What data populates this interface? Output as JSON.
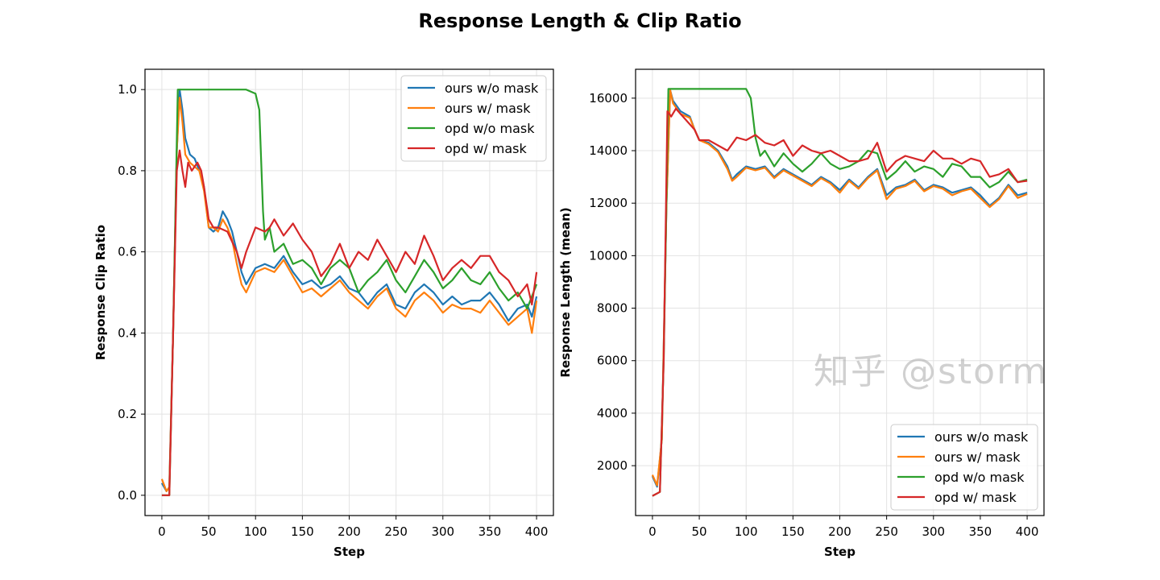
{
  "title": "Response Length & Clip Ratio",
  "watermark": "知乎 @storm",
  "colors": {
    "ours w/o mask": "#1f77b4",
    "ours w/ mask": "#ff7f0e",
    "opd w/o mask": "#2ca02c",
    "opd w/ mask": "#d62728"
  },
  "chart_data": [
    {
      "type": "line",
      "xlabel": "Step",
      "ylabel": "Response Clip Ratio",
      "xlim": [
        -18,
        418
      ],
      "ylim": [
        -0.05,
        1.05
      ],
      "xticks": [
        0,
        50,
        100,
        150,
        200,
        250,
        300,
        350,
        400
      ],
      "yticks": [
        0.0,
        0.2,
        0.4,
        0.6,
        0.8,
        1.0
      ],
      "ytick_labels": [
        "0.0",
        "0.2",
        "0.4",
        "0.6",
        "0.8",
        "1.0"
      ],
      "grid": true,
      "legend": "top-right",
      "series": [
        {
          "name": "ours w/o mask",
          "x": [
            0,
            5,
            8,
            12,
            16,
            19,
            22,
            25,
            30,
            35,
            40,
            45,
            50,
            55,
            60,
            65,
            70,
            75,
            80,
            85,
            90,
            100,
            110,
            120,
            130,
            140,
            150,
            160,
            170,
            180,
            190,
            200,
            210,
            220,
            230,
            240,
            250,
            260,
            270,
            280,
            290,
            300,
            310,
            320,
            330,
            340,
            350,
            360,
            370,
            380,
            390,
            395,
            400
          ],
          "y": [
            0.03,
            0.01,
            0.02,
            0.4,
            0.85,
            1.0,
            0.95,
            0.88,
            0.84,
            0.83,
            0.8,
            0.76,
            0.66,
            0.65,
            0.66,
            0.7,
            0.68,
            0.65,
            0.6,
            0.55,
            0.52,
            0.56,
            0.57,
            0.56,
            0.59,
            0.55,
            0.52,
            0.53,
            0.51,
            0.52,
            0.54,
            0.51,
            0.5,
            0.47,
            0.5,
            0.52,
            0.47,
            0.46,
            0.5,
            0.52,
            0.5,
            0.47,
            0.49,
            0.47,
            0.48,
            0.48,
            0.5,
            0.47,
            0.43,
            0.46,
            0.47,
            0.44,
            0.49
          ]
        },
        {
          "name": "ours w/ mask",
          "x": [
            0,
            5,
            8,
            12,
            16,
            19,
            22,
            25,
            30,
            35,
            40,
            45,
            50,
            55,
            60,
            65,
            70,
            75,
            80,
            85,
            90,
            100,
            110,
            120,
            130,
            140,
            150,
            160,
            170,
            180,
            190,
            200,
            210,
            220,
            230,
            240,
            250,
            260,
            270,
            280,
            290,
            300,
            310,
            320,
            330,
            340,
            350,
            360,
            370,
            380,
            390,
            395,
            400
          ],
          "y": [
            0.04,
            0.01,
            0.02,
            0.4,
            0.85,
            0.98,
            0.92,
            0.84,
            0.82,
            0.81,
            0.8,
            0.75,
            0.66,
            0.66,
            0.65,
            0.68,
            0.66,
            0.63,
            0.57,
            0.52,
            0.5,
            0.55,
            0.56,
            0.55,
            0.58,
            0.54,
            0.5,
            0.51,
            0.49,
            0.51,
            0.53,
            0.5,
            0.48,
            0.46,
            0.49,
            0.51,
            0.46,
            0.44,
            0.48,
            0.5,
            0.48,
            0.45,
            0.47,
            0.46,
            0.46,
            0.45,
            0.48,
            0.45,
            0.42,
            0.44,
            0.46,
            0.4,
            0.48
          ]
        },
        {
          "name": "opd w/o mask",
          "x": [
            0,
            8,
            12,
            17,
            30,
            50,
            70,
            90,
            100,
            104,
            108,
            110,
            115,
            120,
            130,
            140,
            150,
            160,
            170,
            180,
            190,
            200,
            210,
            220,
            230,
            240,
            250,
            260,
            270,
            280,
            290,
            300,
            310,
            320,
            330,
            340,
            350,
            360,
            370,
            380,
            390,
            400
          ],
          "y": [
            0,
            0,
            0.4,
            1.0,
            1.0,
            1.0,
            1.0,
            1.0,
            0.99,
            0.95,
            0.7,
            0.63,
            0.66,
            0.6,
            0.62,
            0.57,
            0.58,
            0.56,
            0.52,
            0.56,
            0.58,
            0.56,
            0.5,
            0.53,
            0.55,
            0.58,
            0.53,
            0.5,
            0.54,
            0.58,
            0.55,
            0.51,
            0.53,
            0.56,
            0.53,
            0.52,
            0.55,
            0.51,
            0.48,
            0.5,
            0.46,
            0.52
          ]
        },
        {
          "name": "opd w/ mask",
          "x": [
            0,
            8,
            12,
            16,
            19,
            22,
            25,
            28,
            32,
            38,
            42,
            45,
            50,
            55,
            60,
            70,
            80,
            85,
            90,
            100,
            110,
            115,
            120,
            130,
            140,
            150,
            160,
            170,
            180,
            190,
            200,
            210,
            220,
            230,
            240,
            250,
            260,
            270,
            280,
            290,
            300,
            310,
            320,
            330,
            340,
            350,
            360,
            370,
            380,
            390,
            395,
            400
          ],
          "y": [
            0,
            0,
            0.4,
            0.8,
            0.85,
            0.8,
            0.76,
            0.82,
            0.8,
            0.82,
            0.8,
            0.76,
            0.68,
            0.66,
            0.66,
            0.65,
            0.6,
            0.56,
            0.6,
            0.66,
            0.65,
            0.66,
            0.68,
            0.64,
            0.67,
            0.63,
            0.6,
            0.54,
            0.57,
            0.62,
            0.56,
            0.6,
            0.58,
            0.63,
            0.59,
            0.55,
            0.6,
            0.57,
            0.64,
            0.59,
            0.53,
            0.56,
            0.58,
            0.56,
            0.59,
            0.59,
            0.55,
            0.53,
            0.49,
            0.52,
            0.47,
            0.55
          ]
        }
      ]
    },
    {
      "type": "line",
      "xlabel": "Step",
      "ylabel": "Response Length (mean)",
      "xlim": [
        -18,
        418
      ],
      "ylim": [
        100,
        17100
      ],
      "xticks": [
        0,
        50,
        100,
        150,
        200,
        250,
        300,
        350,
        400
      ],
      "yticks": [
        2000,
        4000,
        6000,
        8000,
        10000,
        12000,
        14000,
        16000
      ],
      "ytick_labels": [
        "2000",
        "4000",
        "6000",
        "8000",
        "10000",
        "12000",
        "14000",
        "16000"
      ],
      "grid": true,
      "legend": "bottom-right",
      "series": [
        {
          "name": "ours w/o mask",
          "x": [
            0,
            5,
            10,
            15,
            19,
            22,
            30,
            40,
            45,
            50,
            60,
            70,
            80,
            85,
            90,
            100,
            110,
            120,
            130,
            140,
            150,
            160,
            170,
            180,
            190,
            200,
            210,
            220,
            230,
            240,
            250,
            260,
            270,
            280,
            290,
            300,
            310,
            320,
            330,
            340,
            350,
            360,
            370,
            380,
            390,
            400
          ],
          "y": [
            1600,
            1200,
            3000,
            12000,
            16300,
            15900,
            15500,
            15300,
            14800,
            14400,
            14300,
            14000,
            13400,
            12900,
            13100,
            13400,
            13300,
            13400,
            13000,
            13300,
            13100,
            12900,
            12700,
            13000,
            12800,
            12500,
            12900,
            12600,
            13000,
            13300,
            12300,
            12600,
            12700,
            12900,
            12500,
            12700,
            12600,
            12400,
            12500,
            12600,
            12300,
            11900,
            12200,
            12700,
            12300,
            12400
          ]
        },
        {
          "name": "ours w/ mask",
          "x": [
            0,
            5,
            10,
            15,
            19,
            22,
            30,
            40,
            45,
            50,
            60,
            70,
            80,
            85,
            90,
            100,
            110,
            120,
            130,
            140,
            150,
            160,
            170,
            180,
            190,
            200,
            210,
            220,
            230,
            240,
            250,
            260,
            270,
            280,
            290,
            300,
            310,
            320,
            330,
            340,
            350,
            360,
            370,
            380,
            390,
            400
          ],
          "y": [
            1650,
            1250,
            3000,
            12000,
            16300,
            15800,
            15400,
            15250,
            14800,
            14400,
            14250,
            13950,
            13300,
            12850,
            13000,
            13350,
            13250,
            13350,
            12950,
            13250,
            13050,
            12850,
            12650,
            12950,
            12750,
            12400,
            12850,
            12550,
            12950,
            13250,
            12150,
            12550,
            12650,
            12850,
            12450,
            12650,
            12550,
            12300,
            12450,
            12550,
            12200,
            11850,
            12150,
            12650,
            12200,
            12350
          ]
        },
        {
          "name": "opd w/o mask",
          "x": [
            0,
            8,
            12,
            17,
            40,
            70,
            100,
            105,
            110,
            115,
            120,
            130,
            140,
            150,
            160,
            170,
            180,
            190,
            200,
            210,
            220,
            230,
            240,
            250,
            260,
            270,
            280,
            290,
            300,
            310,
            320,
            330,
            340,
            350,
            360,
            370,
            380,
            390,
            400
          ],
          "y": [
            850,
            1000,
            6000,
            16350,
            16350,
            16350,
            16350,
            16000,
            14500,
            13800,
            14000,
            13400,
            13900,
            13500,
            13200,
            13500,
            13900,
            13500,
            13300,
            13400,
            13600,
            14000,
            13900,
            12900,
            13200,
            13600,
            13200,
            13400,
            13300,
            13000,
            13500,
            13400,
            13000,
            13000,
            12600,
            12800,
            13200,
            12800,
            12900
          ]
        },
        {
          "name": "opd w/ mask",
          "x": [
            0,
            8,
            12,
            16,
            20,
            25,
            30,
            40,
            45,
            50,
            60,
            70,
            80,
            90,
            100,
            110,
            120,
            130,
            140,
            150,
            160,
            170,
            180,
            190,
            200,
            210,
            220,
            230,
            240,
            250,
            260,
            270,
            280,
            290,
            300,
            310,
            320,
            330,
            340,
            350,
            360,
            370,
            380,
            390,
            400
          ],
          "y": [
            850,
            1000,
            6000,
            15500,
            15300,
            15600,
            15400,
            15000,
            14800,
            14400,
            14400,
            14200,
            14000,
            14500,
            14400,
            14600,
            14300,
            14200,
            14400,
            13800,
            14200,
            14000,
            13900,
            14000,
            13800,
            13600,
            13600,
            13700,
            14300,
            13200,
            13600,
            13800,
            13700,
            13600,
            14000,
            13700,
            13700,
            13500,
            13700,
            13600,
            13000,
            13100,
            13300,
            12800,
            12850
          ]
        }
      ]
    }
  ]
}
